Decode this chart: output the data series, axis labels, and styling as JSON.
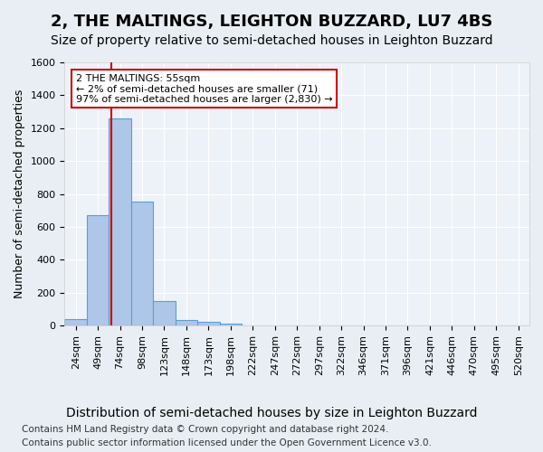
{
  "title": "2, THE MALTINGS, LEIGHTON BUZZARD, LU7 4BS",
  "subtitle": "Size of property relative to semi-detached houses in Leighton Buzzard",
  "xlabel": "Distribution of semi-detached houses by size in Leighton Buzzard",
  "ylabel": "Number of semi-detached properties",
  "footer_line1": "Contains HM Land Registry data © Crown copyright and database right 2024.",
  "footer_line2": "Contains public sector information licensed under the Open Government Licence v3.0.",
  "bin_labels": [
    "24sqm",
    "49sqm",
    "74sqm",
    "98sqm",
    "123sqm",
    "148sqm",
    "173sqm",
    "198sqm",
    "222sqm",
    "247sqm",
    "272sqm",
    "297sqm",
    "322sqm",
    "346sqm",
    "371sqm",
    "396sqm",
    "421sqm",
    "446sqm",
    "470sqm",
    "495sqm",
    "520sqm"
  ],
  "bar_values": [
    40,
    670,
    1260,
    755,
    150,
    35,
    22,
    14,
    0,
    0,
    0,
    0,
    0,
    0,
    0,
    0,
    0,
    0,
    0,
    0,
    0
  ],
  "bar_color": "#aec6e8",
  "bar_edge_color": "#5a9fd4",
  "ylim": [
    0,
    1600
  ],
  "yticks": [
    0,
    200,
    400,
    600,
    800,
    1000,
    1200,
    1400,
    1600
  ],
  "property_line_x": 1.6,
  "annotation_text": "2 THE MALTINGS: 55sqm\n← 2% of semi-detached houses are smaller (71)\n97% of semi-detached houses are larger (2,830) →",
  "annotation_box_color": "#ffffff",
  "annotation_border_color": "#cc0000",
  "vline_color": "#cc0000",
  "bg_color": "#e8eef4",
  "plot_bg_color": "#edf2f8",
  "grid_color": "#ffffff",
  "title_fontsize": 13,
  "subtitle_fontsize": 10,
  "xlabel_fontsize": 10,
  "ylabel_fontsize": 9,
  "tick_fontsize": 8,
  "footer_fontsize": 7.5
}
